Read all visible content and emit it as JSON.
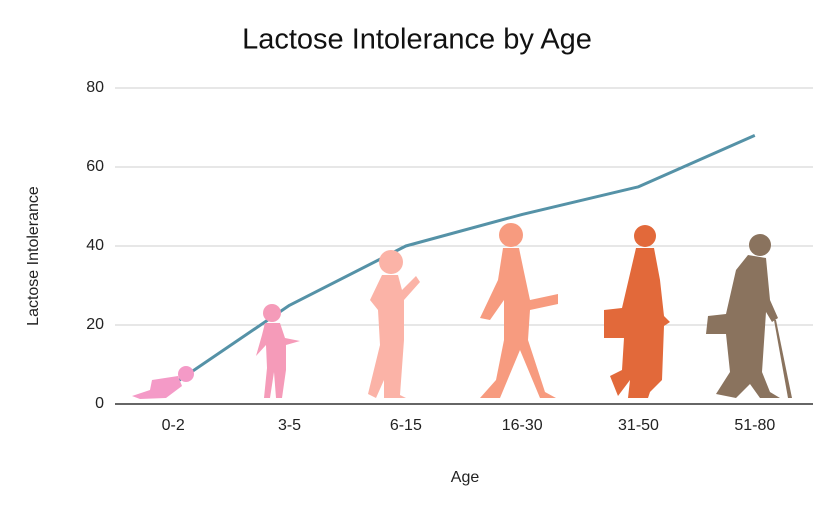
{
  "chart_data": {
    "type": "line",
    "title": "Lactose Intolerance by Age",
    "x_label": "Age",
    "y_label": "Lactose Intolerance",
    "categories": [
      "0-2",
      "3-5",
      "6-15",
      "16-30",
      "31-50",
      "51-80"
    ],
    "series": [
      {
        "name": "Lactose Intolerance",
        "color": "#5592a7",
        "values": [
          5,
          25,
          40,
          48,
          55,
          68
        ]
      }
    ],
    "ylim": [
      0,
      80
    ],
    "yticks": [
      0,
      20,
      40,
      60,
      80
    ],
    "grid": true
  }
}
